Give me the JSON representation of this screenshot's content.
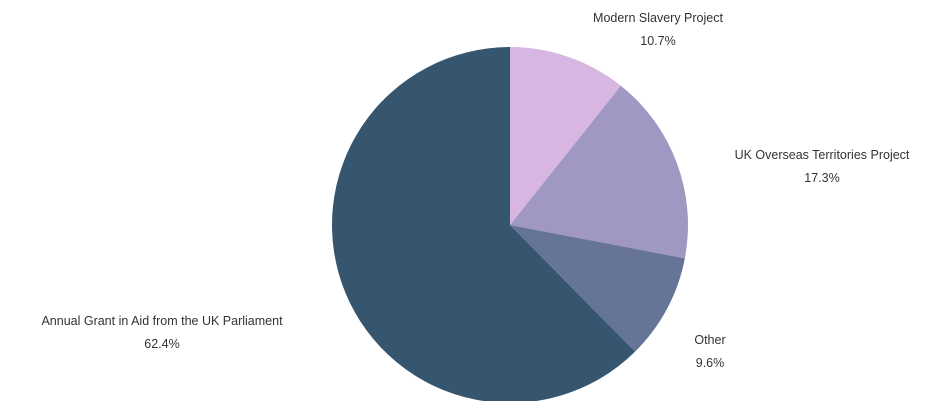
{
  "chart_data": {
    "type": "pie",
    "title": "",
    "start": "top",
    "direction": "clockwise",
    "slices": [
      {
        "label": "Modern Slavery Project",
        "value": 10.7,
        "display": "10.7%",
        "color": "#d7b7e1"
      },
      {
        "label": "UK Overseas Territories Project",
        "value": 17.3,
        "display": "17.3%",
        "color": "#a098c2"
      },
      {
        "label": "Other",
        "value": 9.6,
        "display": "9.6%",
        "color": "#667497"
      },
      {
        "label": "Annual Grant in Aid from the UK Parliament",
        "value": 62.4,
        "display": "62.4%",
        "color": "#36556f"
      }
    ]
  }
}
